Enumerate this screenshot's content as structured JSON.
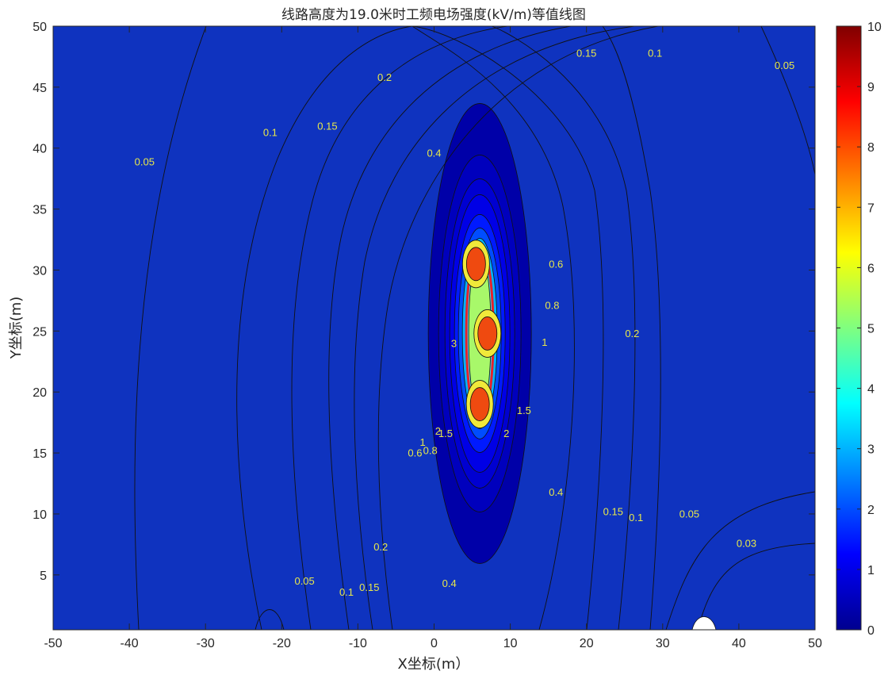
{
  "chart_data": {
    "type": "contour",
    "title": "线路高度为19.0米时工频电场强度(kV/m)等值线图",
    "xlabel": "X坐标(m）",
    "ylabel": "Y坐标(m)",
    "xlim": [
      -50,
      50
    ],
    "ylim": [
      0.5,
      50
    ],
    "x_ticks": [
      "-50",
      "-40",
      "-30",
      "-20",
      "-10",
      "0",
      "10",
      "20",
      "30",
      "40",
      "50"
    ],
    "y_ticks": [
      "5",
      "10",
      "15",
      "20",
      "25",
      "30",
      "35",
      "40",
      "45",
      "50"
    ],
    "colorbar": {
      "min": 0,
      "max": 10,
      "ticks": [
        "0",
        "1",
        "2",
        "3",
        "4",
        "5",
        "6",
        "7",
        "8",
        "9",
        "10"
      ],
      "colormap": "jet"
    },
    "contour_levels": [
      "0.03",
      "0.05",
      "0.1",
      "0.15",
      "0.2",
      "0.4",
      "0.6",
      "0.8",
      "1",
      "1.5",
      "2",
      "3",
      "4",
      "5",
      "6",
      "8"
    ],
    "highlight_contour": {
      "level": "4",
      "color": "#e8202a"
    },
    "field_peaks": [
      {
        "x": 5.5,
        "y": 30.5,
        "value": 8.5
      },
      {
        "x": 7,
        "y": 24.8,
        "value": 8.5
      },
      {
        "x": 6,
        "y": 19,
        "value": 8.5
      }
    ],
    "contour_labels": [
      {
        "text": "0.15",
        "x": 20,
        "y": 47.5
      },
      {
        "text": "0.1",
        "x": 29,
        "y": 47.5
      },
      {
        "text": "0.05",
        "x": 46,
        "y": 46.5
      },
      {
        "text": "0.2",
        "x": -6.5,
        "y": 45.5
      },
      {
        "text": "0.15",
        "x": -14,
        "y": 41.5
      },
      {
        "text": "0.1",
        "x": -21.5,
        "y": 41
      },
      {
        "text": "0.4",
        "x": 0,
        "y": 39.3
      },
      {
        "text": "0.05",
        "x": -38,
        "y": 38.6
      },
      {
        "text": "0.6",
        "x": 16,
        "y": 30.2
      },
      {
        "text": "0.8",
        "x": 15.5,
        "y": 26.8
      },
      {
        "text": "0.2",
        "x": 26,
        "y": 24.5
      },
      {
        "text": "1",
        "x": 14.5,
        "y": 23.8
      },
      {
        "text": "3",
        "x": 2.6,
        "y": 23.7
      },
      {
        "text": "1.5",
        "x": 11.8,
        "y": 18.2
      },
      {
        "text": "2",
        "x": 9.5,
        "y": 16.3
      },
      {
        "text": "2",
        "x": 0.5,
        "y": 16.5
      },
      {
        "text": "1.5",
        "x": 1.5,
        "y": 16.3
      },
      {
        "text": "1",
        "x": -1.5,
        "y": 15.6
      },
      {
        "text": "0.8",
        "x": -0.5,
        "y": 14.9
      },
      {
        "text": "0.6",
        "x": -2.5,
        "y": 14.7
      },
      {
        "text": "0.4",
        "x": 16,
        "y": 11.5
      },
      {
        "text": "0.15",
        "x": 23.5,
        "y": 9.9
      },
      {
        "text": "0.1",
        "x": 26.5,
        "y": 9.4
      },
      {
        "text": "0.05",
        "x": 33.5,
        "y": 9.7
      },
      {
        "text": "0.03",
        "x": 41,
        "y": 7.3
      },
      {
        "text": "0.2",
        "x": -7,
        "y": 7
      },
      {
        "text": "0.05",
        "x": -17,
        "y": 4.2
      },
      {
        "text": "0.1",
        "x": -11.5,
        "y": 3.3
      },
      {
        "text": "0.15",
        "x": -8.5,
        "y": 3.7
      },
      {
        "text": "0.4",
        "x": 2,
        "y": 4
      }
    ]
  }
}
